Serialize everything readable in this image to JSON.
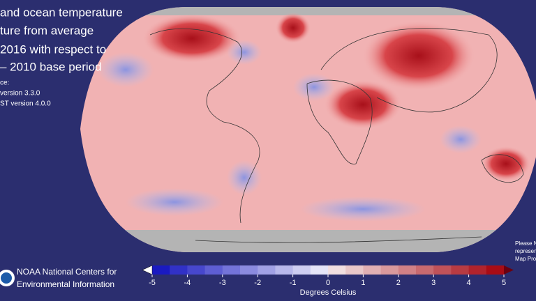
{
  "title_lines": [
    "and ocean temperature",
    "ture from average",
    "2016 with respect to",
    "– 2010 base period"
  ],
  "source_lines": [
    "ce:",
    "version 3.3.0",
    "ST version 4.0.0"
  ],
  "credit_lines": [
    "NOAA National Centers for",
    "Environmental Information"
  ],
  "note_lines": [
    "Please N",
    "represen",
    "Map Pro"
  ],
  "colorbar": {
    "label": "Degrees Celsius",
    "lim": [
      -5,
      5
    ],
    "ticks": [
      -5,
      -4,
      -3,
      -2,
      -1,
      0,
      1,
      2,
      3,
      4,
      5
    ]
  }
}
